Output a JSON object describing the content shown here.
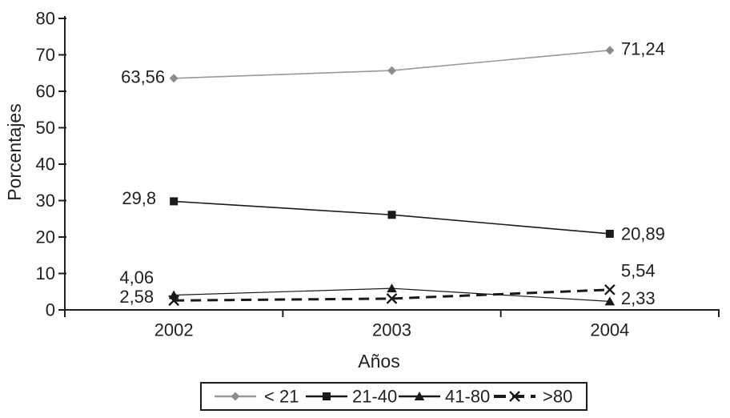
{
  "chart_data": {
    "type": "line",
    "title": "",
    "xlabel": "Años",
    "ylabel": "Porcentajes",
    "categories": [
      "2002",
      "2003",
      "2004"
    ],
    "ylim": [
      0,
      80
    ],
    "ytick_step": 10,
    "yticks": [
      0,
      10,
      20,
      30,
      40,
      50,
      60,
      70,
      80
    ],
    "grid": false,
    "legend_position": "bottom",
    "colors": {
      "background": "#ffffff",
      "text": "#231f20",
      "axis": "#231f20",
      "gray_series": "#999999",
      "gray_marker": "#8c8c8c",
      "black_series": "#1a1a1a"
    },
    "series": [
      {
        "name": "< 21",
        "marker": "diamond",
        "line_style": "solid",
        "color": "#999999",
        "marker_color": "#8c8c8c",
        "values": [
          63.56,
          65.7,
          71.24
        ],
        "point_labels": [
          "63,56",
          "",
          "71,24"
        ]
      },
      {
        "name": "21-40",
        "marker": "square",
        "line_style": "solid",
        "color": "#1a1a1a",
        "marker_color": "#1a1a1a",
        "values": [
          29.8,
          26.1,
          20.89
        ],
        "point_labels": [
          "29,8",
          "",
          "20,89"
        ]
      },
      {
        "name": "41-80",
        "marker": "triangle",
        "line_style": "solid",
        "color": "#1a1a1a",
        "marker_color": "#1a1a1a",
        "values": [
          4.06,
          5.9,
          2.33
        ],
        "point_labels": [
          "4,06",
          "",
          "2,33"
        ]
      },
      {
        "name": ">80",
        "marker": "x",
        "line_style": "dashed",
        "color": "#1a1a1a",
        "marker_color": "#1a1a1a",
        "values": [
          2.58,
          3.1,
          5.54
        ],
        "point_labels": [
          "2,58",
          "",
          "5,54"
        ]
      }
    ]
  }
}
